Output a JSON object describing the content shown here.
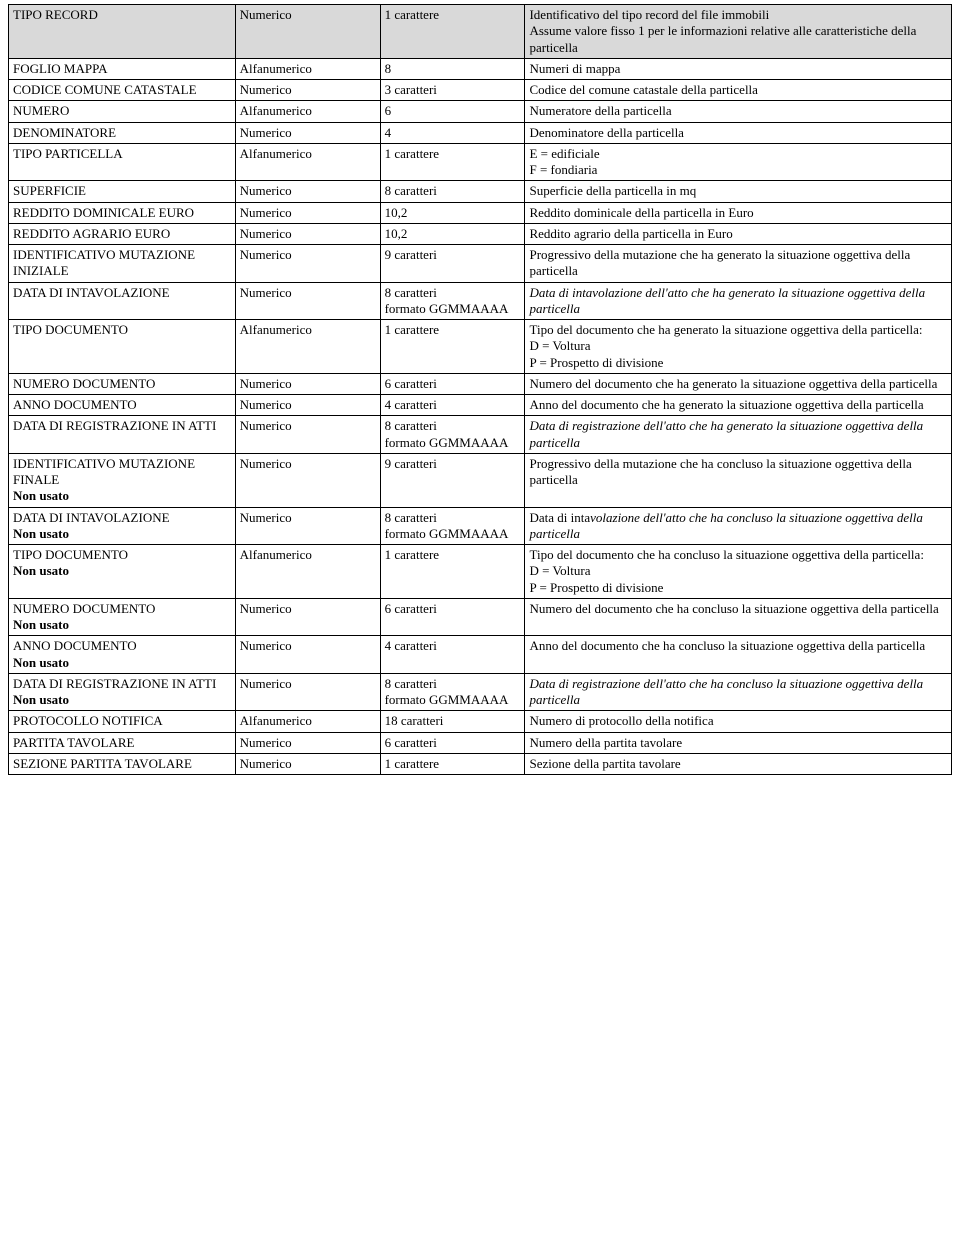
{
  "table": {
    "rows": [
      {
        "shaded": true,
        "name": [
          {
            "text": "TIPO RECORD"
          }
        ],
        "type": "Numerico",
        "size": [
          {
            "text": "1 carattere"
          }
        ],
        "desc": [
          {
            "text": "Identificativo del tipo record del file immobili"
          },
          {
            "text": "Assume valore fisso 1 per le informazioni relative alle caratteristiche della particella"
          }
        ]
      },
      {
        "name": [
          {
            "text": "FOGLIO MAPPA"
          }
        ],
        "type": "Alfanumerico",
        "size": [
          {
            "text": "8"
          }
        ],
        "desc": [
          {
            "text": "Numeri di mappa"
          }
        ]
      },
      {
        "name": [
          {
            "text": "CODICE COMUNE CATASTALE"
          }
        ],
        "type": "Numerico",
        "size": [
          {
            "text": "3 caratteri"
          }
        ],
        "desc": [
          {
            "text": "Codice del comune catastale della particella"
          }
        ]
      },
      {
        "name": [
          {
            "text": "NUMERO"
          }
        ],
        "type": "Alfanumerico",
        "size": [
          {
            "text": "6"
          }
        ],
        "desc": [
          {
            "text": "Numeratore della particella"
          }
        ]
      },
      {
        "name": [
          {
            "text": "DENOMINATORE"
          }
        ],
        "type": "Numerico",
        "size": [
          {
            "text": "4"
          }
        ],
        "desc": [
          {
            "text": "Denominatore della particella"
          }
        ]
      },
      {
        "name": [
          {
            "text": "TIPO PARTICELLA"
          }
        ],
        "type": "Alfanumerico",
        "size": [
          {
            "text": "1 carattere"
          }
        ],
        "desc": [
          {
            "text": "E = edificiale"
          },
          {
            "text": "F = fondiaria"
          }
        ]
      },
      {
        "name": [
          {
            "text": "SUPERFICIE"
          }
        ],
        "type": "Numerico",
        "size": [
          {
            "text": "8 caratteri"
          }
        ],
        "desc": [
          {
            "text": "Superficie della particella in mq"
          }
        ]
      },
      {
        "name": [
          {
            "text": "REDDITO DOMINICALE EURO"
          }
        ],
        "type": "Numerico",
        "size": [
          {
            "text": "10,2"
          }
        ],
        "desc": [
          {
            "text": "Reddito dominicale della particella in Euro"
          }
        ]
      },
      {
        "name": [
          {
            "text": "REDDITO AGRARIO EURO"
          }
        ],
        "type": "Numerico",
        "size": [
          {
            "text": "10,2"
          }
        ],
        "desc": [
          {
            "text": "Reddito agrario della particella in Euro"
          }
        ]
      },
      {
        "name": [
          {
            "text": "IDENTIFICATIVO MUTAZIONE INIZIALE"
          }
        ],
        "type": "Numerico",
        "size": [
          {
            "text": "9 caratteri"
          }
        ],
        "desc": [
          {
            "text": "Progressivo della mutazione che ha generato la situazione oggettiva  della particella"
          }
        ]
      },
      {
        "name": [
          {
            "text": "DATA DI INTAVOLAZIONE"
          }
        ],
        "type": "Numerico",
        "size": [
          {
            "text": "8 caratteri"
          },
          {
            "text": "formato GGMMAAAA"
          }
        ],
        "desc": [
          {
            "text": "Data di intavolazione dell'atto che ha generato la situazione oggettiva della particella",
            "italic": true
          }
        ]
      },
      {
        "name": [
          {
            "text": "TIPO DOCUMENTO"
          }
        ],
        "type": "Alfanumerico",
        "size": [
          {
            "text": "1 carattere"
          }
        ],
        "desc": [
          {
            "text": "Tipo del documento  che ha generato la situazione oggettiva della particella:"
          },
          {
            "text": "D = Voltura"
          },
          {
            "text": "P = Prospetto di divisione"
          }
        ]
      },
      {
        "name": [
          {
            "text": "NUMERO DOCUMENTO"
          }
        ],
        "type": "Numerico",
        "size": [
          {
            "text": "6 caratteri"
          }
        ],
        "desc": [
          {
            "text": "Numero del documento che ha generato la situazione oggettiva della particella"
          }
        ]
      },
      {
        "name": [
          {
            "text": "ANNO DOCUMENTO"
          }
        ],
        "type": "Numerico",
        "size": [
          {
            "text": "4 caratteri"
          }
        ],
        "desc": [
          {
            "text": "Anno del documento che ha generato la situazione oggettiva della particella"
          }
        ]
      },
      {
        "name": [
          {
            "text": "DATA DI REGISTRAZIONE IN ATTI"
          }
        ],
        "type": "Numerico",
        "size": [
          {
            "text": "8 caratteri"
          },
          {
            "text": "formato GGMMAAAA"
          }
        ],
        "desc": [
          {
            "text": "Data di registrazione dell'atto che ha generato la situazione oggettiva della particella",
            "italic": true
          }
        ]
      },
      {
        "name": [
          {
            "text": "IDENTIFICATIVO MUTAZIONE FINALE"
          },
          {
            "text": "Non usato",
            "bold": true
          }
        ],
        "type": "Numerico",
        "size": [
          {
            "text": "9 caratteri"
          }
        ],
        "desc": [
          {
            "text": "Progressivo della mutazione che ha concluso la situazione oggettiva  della particella"
          }
        ]
      },
      {
        "name": [
          {
            "text": "DATA DI INTAVOLAZIONE"
          },
          {
            "text": "Non usato",
            "bold": true
          }
        ],
        "type": "Numerico",
        "size": [
          {
            "text": "8 caratteri"
          },
          {
            "text": "formato GGMMAAAA"
          }
        ],
        "desc": [
          {
            "text": "Data di inta",
            "inline": true
          },
          {
            "text": "volazione dell'atto che ha concluso la situazione oggettiva della particella",
            "italic": true,
            "inline": true
          }
        ]
      },
      {
        "name": [
          {
            "text": "TIPO DOCUMENTO"
          },
          {
            "text": "Non usato",
            "bold": true
          }
        ],
        "type": "Alfanumerico",
        "size": [
          {
            "text": "1 carattere"
          }
        ],
        "desc": [
          {
            "text": "Tipo del documento che ha concluso la situazione oggettiva della particella:"
          },
          {
            "text": "D = Voltura"
          },
          {
            "text": "P = Prospetto di divisione"
          }
        ]
      },
      {
        "name": [
          {
            "text": "NUMERO DOCUMENTO"
          },
          {
            "text": "Non usato",
            "bold": true
          }
        ],
        "type": "Numerico",
        "size": [
          {
            "text": "6 caratteri"
          }
        ],
        "desc": [
          {
            "text": "Numero del documento che ha concluso la situazione oggettiva della particella"
          }
        ]
      },
      {
        "name": [
          {
            "text": "ANNO DOCUMENTO"
          },
          {
            "text": "Non usato",
            "bold": true
          }
        ],
        "type": "Numerico",
        "size": [
          {
            "text": "4 caratteri"
          }
        ],
        "desc": [
          {
            "text": "Anno del documento che ha concluso la situazione oggettiva della particella"
          }
        ]
      },
      {
        "name": [
          {
            "text": "DATA DI REGISTRAZIONE IN ATTI"
          },
          {
            "text": "Non usato",
            "bold": true
          }
        ],
        "type": "Numerico",
        "size": [
          {
            "text": "8 caratteri"
          },
          {
            "text": "formato GGMMAAAA"
          }
        ],
        "desc": [
          {
            "text": "Data di registrazione dell'atto che ha concluso la situazione oggettiva della particella",
            "italic": true
          }
        ]
      },
      {
        "name": [
          {
            "text": "PROTOCOLLO NOTIFICA"
          }
        ],
        "type": "Alfanumerico",
        "size": [
          {
            "text": "18 caratteri"
          }
        ],
        "desc": [
          {
            "text": "Numero di protocollo della notifica"
          }
        ]
      },
      {
        "name": [
          {
            "text": "PARTITA TAVOLARE"
          }
        ],
        "type": "Numerico",
        "size": [
          {
            "text": "6 caratteri"
          }
        ],
        "desc": [
          {
            "text": "Numero della partita tavolare"
          }
        ]
      },
      {
        "name": [
          {
            "text": "SEZIONE PARTITA TAVOLARE"
          }
        ],
        "type": "Numerico",
        "size": [
          {
            "text": "1 carattere"
          }
        ],
        "desc": [
          {
            "text": "Sezione della partita tavolare"
          }
        ]
      }
    ]
  }
}
